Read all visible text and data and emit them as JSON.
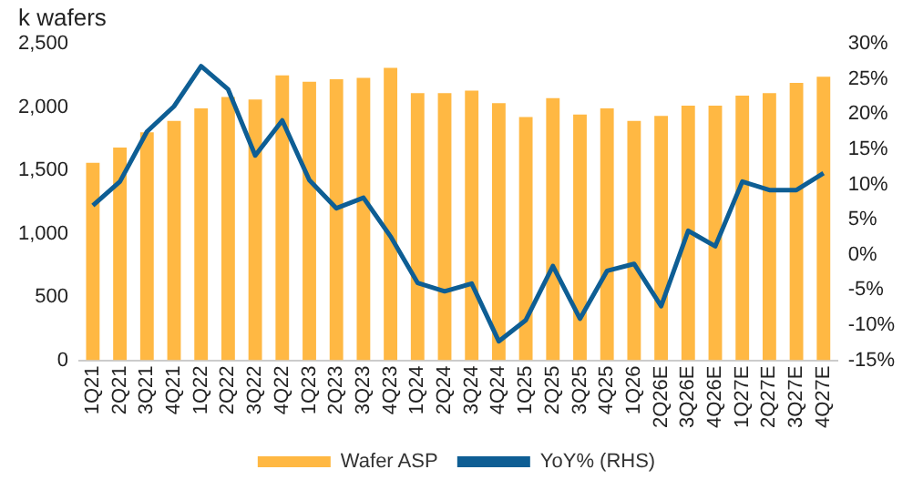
{
  "chart_data": {
    "type": "bar",
    "ylabel": "k wafers",
    "categories": [
      "1Q21",
      "2Q21",
      "3Q21",
      "4Q21",
      "1Q22",
      "2Q22",
      "3Q22",
      "4Q22",
      "1Q23",
      "2Q23",
      "3Q23",
      "4Q23",
      "1Q24",
      "2Q24",
      "3Q24",
      "4Q24",
      "1Q25",
      "2Q25",
      "3Q25",
      "4Q25",
      "1Q26",
      "2Q26E",
      "3Q26E",
      "4Q26E",
      "1Q27E",
      "2Q27E",
      "3Q27E",
      "4Q27E"
    ],
    "series": [
      {
        "name": "Wafer ASP",
        "color": "#ffb843",
        "values": [
          1560,
          1680,
          1800,
          1890,
          1990,
          2080,
          2060,
          2250,
          2200,
          2220,
          2230,
          2310,
          2110,
          2110,
          2130,
          2030,
          1920,
          2070,
          1940,
          1990,
          1890,
          1930,
          2010,
          2010,
          2090,
          2110,
          2190,
          2240
        ]
      },
      {
        "name": "YoY% (RHS)",
        "type": "line",
        "axis": "y2",
        "color": "#0e5e94",
        "values": [
          7.0,
          10.4,
          17.5,
          21.1,
          26.8,
          23.5,
          14.1,
          19.1,
          10.6,
          6.6,
          8.1,
          2.6,
          -4.0,
          -5.2,
          -4.1,
          -12.3,
          -9.3,
          -1.6,
          -9.1,
          -2.3,
          -1.3,
          -7.3,
          3.4,
          1.2,
          10.4,
          9.2,
          9.2,
          11.6
        ]
      }
    ],
    "ylim": [
      0,
      2500
    ],
    "yticks": [
      0,
      500,
      {
        "value": 1000,
        "label": "1,000"
      },
      {
        "value": 1500,
        "label": "1,500"
      },
      {
        "value": 2000,
        "label": "2,000"
      },
      {
        "value": 2500,
        "label": "2,500"
      }
    ],
    "y2lim": [
      -15,
      30
    ],
    "y2ticks": [
      {
        "value": -15,
        "label": "-15%"
      },
      {
        "value": -10,
        "label": "-10%"
      },
      {
        "value": -5,
        "label": "-5%"
      },
      {
        "value": 0,
        "label": "0%"
      },
      {
        "value": 5,
        "label": "5%"
      },
      {
        "value": 10,
        "label": "10%"
      },
      {
        "value": 15,
        "label": "15%"
      },
      {
        "value": 20,
        "label": "20%"
      },
      {
        "value": 25,
        "label": "25%"
      },
      {
        "value": 30,
        "label": "30%"
      }
    ],
    "legend": "bottom",
    "marker": "none",
    "line_style": "solid"
  }
}
